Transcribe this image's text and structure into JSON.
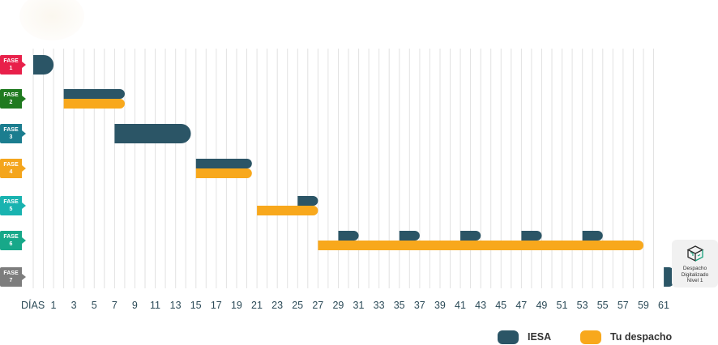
{
  "chart_data": {
    "type": "gantt",
    "x_axis": {
      "label": "DÍAS",
      "ticks": [
        1,
        3,
        5,
        7,
        9,
        11,
        13,
        15,
        17,
        19,
        21,
        23,
        25,
        27,
        29,
        31,
        33,
        35,
        37,
        39,
        41,
        43,
        45,
        47,
        49,
        51,
        53,
        55,
        57,
        59,
        61
      ],
      "range": [
        0,
        62
      ],
      "grid": true
    },
    "phases": [
      {
        "label": [
          "FASE",
          "1"
        ],
        "color": "#e8204a"
      },
      {
        "label": [
          "FASE",
          "2"
        ],
        "color": "#1f7a1f"
      },
      {
        "label": [
          "FASE",
          "3"
        ],
        "color": "#1b7d8f"
      },
      {
        "label": [
          "FASE",
          "4"
        ],
        "color": "#f4a51c"
      },
      {
        "label": [
          "FASE",
          "5"
        ],
        "color": "#19b3b0"
      },
      {
        "label": [
          "FASE",
          "6"
        ],
        "color": "#17a889"
      },
      {
        "label": [
          "FASE",
          "7"
        ],
        "color": "#7d7d7d"
      }
    ],
    "series": [
      {
        "name": "IESA",
        "color": "#2b5566",
        "tasks": [
          {
            "phase": 1,
            "start": 0,
            "end": 2
          },
          {
            "phase": 2,
            "start": 3,
            "end": 9
          },
          {
            "phase": 3,
            "start": 8,
            "end": 15.5
          },
          {
            "phase": 4,
            "start": 16,
            "end": 21.5
          },
          {
            "phase": 5,
            "start": 26,
            "end": 28
          },
          {
            "phase": 6,
            "start": 30,
            "end": 32
          },
          {
            "phase": 6,
            "start": 36,
            "end": 38
          },
          {
            "phase": 6,
            "start": 42,
            "end": 44
          },
          {
            "phase": 6,
            "start": 48,
            "end": 50
          },
          {
            "phase": 6,
            "start": 54,
            "end": 56
          },
          {
            "phase": 7,
            "start": 62,
            "end": 63
          }
        ]
      },
      {
        "name": "Tu despacho",
        "color": "#f8a81c",
        "tasks": [
          {
            "phase": 2,
            "start": 3,
            "end": 9
          },
          {
            "phase": 4,
            "start": 16,
            "end": 21.5
          },
          {
            "phase": 5,
            "start": 22,
            "end": 28
          },
          {
            "phase": 6,
            "start": 28,
            "end": 60
          }
        ]
      }
    ],
    "milestone": {
      "lines": [
        "Despacho",
        "Digitalizado",
        "Nivel 1"
      ],
      "icon": "box-icon"
    },
    "legend": {
      "position": "bottom-right"
    }
  }
}
